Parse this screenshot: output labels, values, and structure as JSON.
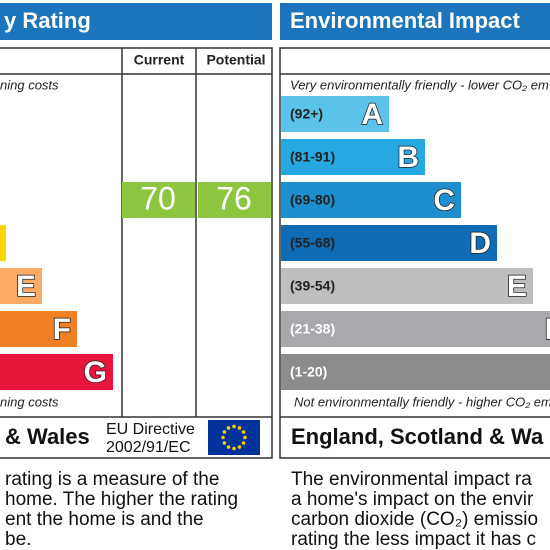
{
  "left": {
    "title": "y Rating",
    "headers": [
      "Current",
      "Potential"
    ],
    "top_note": "ning costs",
    "bottom_note": "ning costs",
    "bands": [
      {
        "color": "#ffd500"
      },
      {
        "letter": "E",
        "color": "#fcaa65"
      },
      {
        "letter": "F",
        "color": "#ef8023"
      },
      {
        "letter": "G",
        "color": "#e9153b"
      }
    ],
    "current": 70,
    "potential": 76,
    "rating_color": "#8cc63f",
    "footer": "& Wales",
    "directive": [
      "EU Directive",
      "2002/91/EC"
    ],
    "paragraph": [
      "rating is a measure of the",
      "home. The higher the rating",
      "ent the home is and the",
      "be."
    ]
  },
  "right": {
    "title": "Environmental Impact",
    "top_note": "Very environmentally friendly - lower CO₂ em",
    "bottom_note": "Not environmentally friendly - higher CO₂ em",
    "bands": [
      {
        "range": "(92+)",
        "letter": "A",
        "color": "#5bc2ea"
      },
      {
        "range": "(81-91)",
        "letter": "B",
        "color": "#26a9e0"
      },
      {
        "range": "(69-80)",
        "letter": "C",
        "color": "#1d8fce"
      },
      {
        "range": "(55-68)",
        "letter": "D",
        "color": "#0f6cb5"
      },
      {
        "range": "(39-54)",
        "letter": "E",
        "color": "#bcbec0"
      },
      {
        "range": "(21-38)",
        "letter": "F",
        "color": "#a7a9ac"
      },
      {
        "range": "(1-20)",
        "color": "#8c8c8c"
      }
    ],
    "footer": "England, Scotland & Wa",
    "paragraph": [
      "The environmental impact ra",
      "a home's impact on the envir",
      "carbon dioxide (CO₂) emissio",
      "rating the less impact it has c"
    ]
  },
  "header_color": "#1c75bc"
}
